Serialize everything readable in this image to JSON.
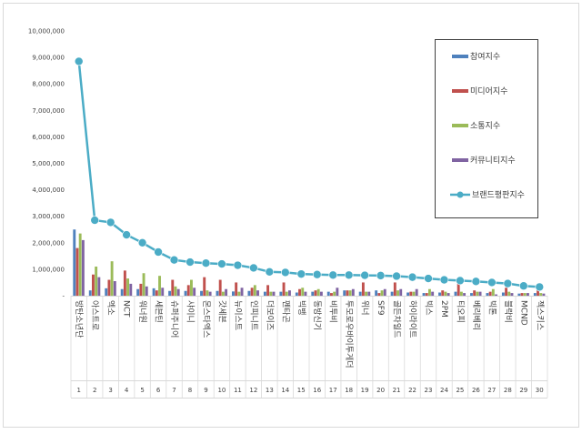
{
  "chart_data": {
    "type": "bar",
    "title": "",
    "xlabel": "",
    "ylabel": "",
    "ylim": [
      0,
      10000000
    ],
    "yticks": [
      "-",
      "1,000,000",
      "2,000,000",
      "3,000,000",
      "4,000,000",
      "5,000,000",
      "6,000,000",
      "7,000,000",
      "8,000,000",
      "9,000,000",
      "10,000,000"
    ],
    "grid": false,
    "legend_position": "right",
    "categories": [
      "방탄소년단",
      "아스트로",
      "엑소",
      "NCT",
      "워너원",
      "세븐틴",
      "슈퍼주니어",
      "샤이니",
      "몬스타엑스",
      "갓세븐",
      "뉴이스트",
      "인피니트",
      "더보이즈",
      "펜타곤",
      "빅뱅",
      "동방신기",
      "비투비",
      "투모로우바이투게더",
      "위너",
      "SF9",
      "골든차일드",
      "하이라이트",
      "빅스",
      "2PM",
      "티오피",
      "베리베리",
      "빅톤",
      "블락비",
      "MCND",
      "젝스키스"
    ],
    "numbers": [
      "1",
      "2",
      "3",
      "4",
      "5",
      "6",
      "7",
      "8",
      "9",
      "10",
      "11",
      "12",
      "13",
      "14",
      "15",
      "16",
      "17",
      "18",
      "19",
      "20",
      "21",
      "22",
      "23",
      "24",
      "25",
      "26",
      "27",
      "28",
      "29",
      "30"
    ],
    "series": [
      {
        "name": "참여지수",
        "color": "#4f81bd",
        "values": [
          2500000,
          200000,
          280000,
          250000,
          250000,
          280000,
          180000,
          180000,
          180000,
          180000,
          160000,
          180000,
          150000,
          150000,
          120000,
          150000,
          150000,
          200000,
          150000,
          200000,
          150000,
          120000,
          100000,
          120000,
          150000,
          100000,
          100000,
          120000,
          80000,
          100000
        ]
      },
      {
        "name": "미디어지수",
        "color": "#c0504d",
        "values": [
          1800000,
          800000,
          600000,
          950000,
          450000,
          200000,
          600000,
          400000,
          700000,
          600000,
          500000,
          300000,
          400000,
          500000,
          250000,
          200000,
          100000,
          200000,
          500000,
          100000,
          500000,
          150000,
          100000,
          200000,
          600000,
          200000,
          150000,
          300000,
          100000,
          300000
        ]
      },
      {
        "name": "소통지수",
        "color": "#9bbb59",
        "values": [
          2350000,
          1100000,
          1300000,
          650000,
          850000,
          750000,
          350000,
          600000,
          200000,
          150000,
          150000,
          400000,
          150000,
          150000,
          300000,
          250000,
          150000,
          200000,
          150000,
          200000,
          200000,
          150000,
          250000,
          150000,
          150000,
          150000,
          250000,
          150000,
          100000,
          100000
        ]
      },
      {
        "name": "커뮤니티지수",
        "color": "#8064a2",
        "values": [
          2100000,
          700000,
          550000,
          450000,
          350000,
          300000,
          250000,
          300000,
          150000,
          250000,
          300000,
          200000,
          150000,
          200000,
          150000,
          150000,
          300000,
          250000,
          150000,
          250000,
          250000,
          250000,
          150000,
          100000,
          100000,
          150000,
          50000,
          100000,
          100000,
          80000
        ]
      }
    ],
    "line": {
      "name": "브랜드평판지수",
      "color": "#4bacc6",
      "values": [
        8850000,
        2850000,
        2770000,
        2300000,
        2000000,
        1650000,
        1350000,
        1270000,
        1230000,
        1200000,
        1150000,
        1050000,
        900000,
        880000,
        820000,
        800000,
        780000,
        780000,
        770000,
        760000,
        740000,
        700000,
        650000,
        600000,
        570000,
        540000,
        500000,
        460000,
        370000,
        330000
      ]
    }
  }
}
